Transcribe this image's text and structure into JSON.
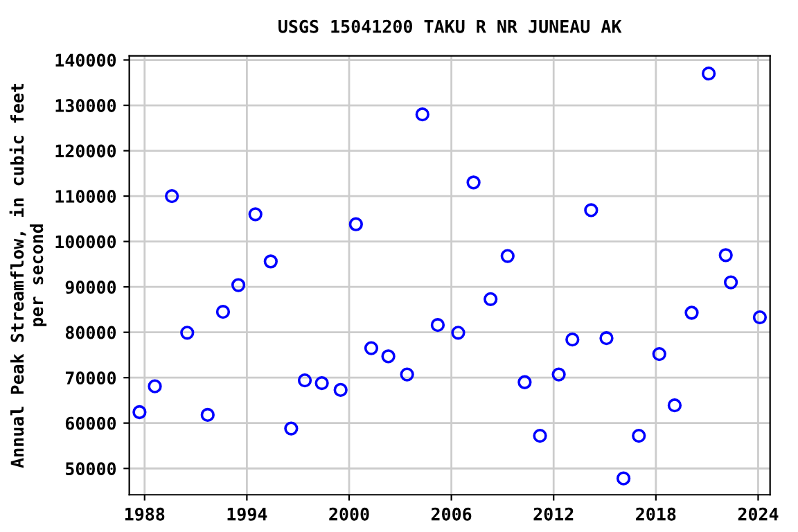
{
  "chart_data": {
    "type": "scatter",
    "title": "USGS 15041200 TAKU R NR JUNEAU AK",
    "ylabel": "Annual Peak Streamflow, in cubic feet\nper second",
    "x": [
      1987.7,
      1988.6,
      1989.6,
      1990.5,
      1991.7,
      1992.6,
      1993.5,
      1994.5,
      1995.4,
      1996.6,
      1997.4,
      1998.4,
      1999.5,
      2000.4,
      2001.3,
      2002.3,
      2003.4,
      2004.3,
      2005.2,
      2006.4,
      2007.3,
      2008.3,
      2009.3,
      2010.3,
      2011.2,
      2012.3,
      2013.1,
      2014.2,
      2015.1,
      2016.1,
      2017.0,
      2018.2,
      2019.1,
      2020.1,
      2021.1,
      2022.1,
      2022.4,
      2024.1
    ],
    "series": [
      {
        "color": "#0000ff",
        "values": [
          62400,
          68100,
          110000,
          79900,
          61800,
          84500,
          90400,
          106000,
          95600,
          58800,
          69400,
          68800,
          67300,
          103800,
          76500,
          74700,
          70700,
          128000,
          81600,
          79900,
          113000,
          87300,
          96800,
          69000,
          57200,
          70700,
          78400,
          106900,
          78700,
          47800,
          57200,
          75200,
          63900,
          84300,
          137000,
          97000,
          91000,
          83300
        ]
      }
    ],
    "xlim": [
      1987.1,
      2024.7
    ],
    "xticks": [
      1988,
      1994,
      2000,
      2006,
      2012,
      2018,
      2024
    ],
    "ylim": [
      44200,
      140900
    ],
    "yticks": [
      50000,
      60000,
      70000,
      80000,
      90000,
      100000,
      110000,
      120000,
      130000,
      140000
    ],
    "grid": true,
    "marker": "circle",
    "legend": false
  }
}
